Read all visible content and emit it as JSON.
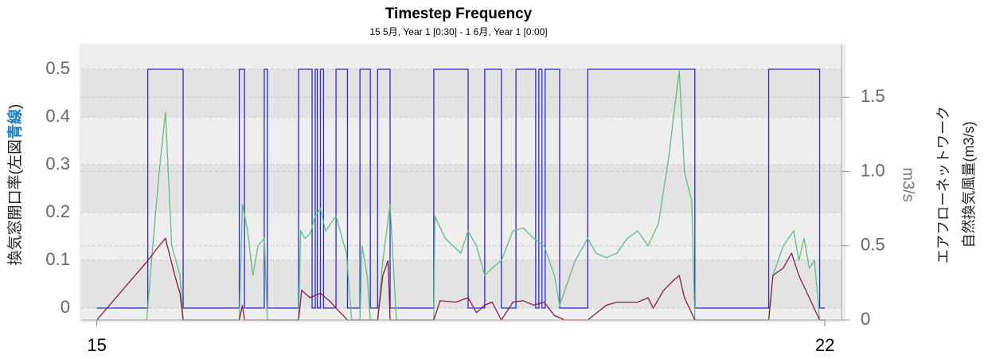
{
  "chart_data": {
    "type": "line",
    "title": "Timestep Frequency",
    "subtitle": "15 5月, Year 1 [0:30] - 1 6月, Year 1 [0:00]",
    "ylabel": [
      "換気窓開口率(左図",
      "青線",
      ")"
    ],
    "y2label": "m3/s",
    "y2title": [
      "エアフローネットワーク",
      "自然換気風量(m3/s)"
    ],
    "xlim": [
      14.85,
      22.16
    ],
    "xticks": [
      15,
      22
    ],
    "ylim": [
      -0.025,
      0.55
    ],
    "yticks": [
      0,
      0.1,
      0.2,
      0.3,
      0.4,
      0.5
    ],
    "y2lim": [
      0,
      1.85
    ],
    "y2ticks": [
      0,
      0.5,
      {
        "value": 1,
        "label": "1.0"
      },
      1.5
    ],
    "grid": true,
    "series": [
      {
        "color": "#2a2acc",
        "axis": "y",
        "x": [
          15,
          15.49,
          15.49,
          15.83,
          15.83,
          16.37,
          16.37,
          16.42,
          16.42,
          16.61,
          16.61,
          16.64,
          16.64,
          16.94,
          16.94,
          17.07,
          17.07,
          17.1,
          17.1,
          17.12,
          17.12,
          17.15,
          17.15,
          17.18,
          17.18,
          17.3,
          17.3,
          17.41,
          17.41,
          17.53,
          17.53,
          17.63,
          17.63,
          17.7,
          17.7,
          17.82,
          17.82,
          18.24,
          18.24,
          18.57,
          18.57,
          18.73,
          18.73,
          18.89,
          18.89,
          19.03,
          19.03,
          19.22,
          19.22,
          19.25,
          19.25,
          19.28,
          19.28,
          19.31,
          19.31,
          19.45,
          19.45,
          19.72,
          19.72,
          20.75,
          20.75,
          21.46,
          21.46,
          21.95,
          21.95,
          22
        ],
        "values": [
          0,
          0,
          0.5,
          0.5,
          0,
          0,
          0.5,
          0.5,
          0,
          0,
          0.5,
          0.5,
          0,
          0,
          0.5,
          0.5,
          0,
          0,
          0.5,
          0.5,
          0,
          0,
          0.5,
          0.5,
          0,
          0,
          0.5,
          0.5,
          0,
          0,
          0.5,
          0.5,
          0,
          0,
          0.5,
          0.5,
          0,
          0,
          0.5,
          0.5,
          0,
          0,
          0.5,
          0.5,
          0,
          0,
          0.5,
          0.5,
          0,
          0,
          0.5,
          0.5,
          0,
          0,
          0.5,
          0.5,
          0,
          0,
          0.5,
          0.5,
          0,
          0,
          0.5,
          0.5,
          0,
          0
        ]
      },
      {
        "color": "#5cbf7e",
        "axis": "y2",
        "x": [
          15.0,
          15.48,
          15.55,
          15.6,
          15.66,
          15.72,
          15.8,
          15.83,
          16.37,
          16.4,
          16.45,
          16.5,
          16.55,
          16.61,
          16.64,
          16.94,
          16.96,
          17.0,
          17.05,
          17.1,
          17.15,
          17.2,
          17.3,
          17.4,
          17.45,
          17.53,
          17.55,
          17.6,
          17.63,
          17.7,
          17.75,
          17.82,
          17.88,
          18.24,
          18.25,
          18.35,
          18.5,
          18.57,
          18.65,
          18.73,
          18.8,
          18.89,
          19.0,
          19.1,
          19.2,
          19.3,
          19.4,
          19.45,
          19.6,
          19.72,
          19.8,
          19.9,
          20.0,
          20.1,
          20.2,
          20.3,
          20.4,
          20.5,
          20.55,
          20.6,
          20.65,
          20.72,
          20.75,
          21.46,
          21.5,
          21.6,
          21.7,
          21.75,
          21.8,
          21.85,
          21.9,
          21.95,
          22.0
        ],
        "values": [
          0,
          0,
          0.6,
          1.0,
          1.4,
          0.5,
          0.3,
          0,
          0,
          0.78,
          0.6,
          0.3,
          0.5,
          0.55,
          0,
          0,
          0.6,
          0.55,
          0.58,
          0.7,
          0.75,
          0.6,
          0.7,
          0.45,
          0,
          0,
          0.5,
          0.3,
          0,
          0,
          0.4,
          0.78,
          0,
          0,
          0.7,
          0.55,
          0.45,
          0.6,
          0.5,
          0.3,
          0.35,
          0.4,
          0.6,
          0.62,
          0.55,
          0.5,
          0.3,
          0.1,
          0.4,
          0.55,
          0.45,
          0.42,
          0.45,
          0.55,
          0.6,
          0.5,
          0.65,
          1.1,
          1.4,
          1.68,
          1.0,
          0.8,
          0,
          0,
          0.3,
          0.5,
          0.6,
          0.4,
          0.55,
          0.35,
          0.4,
          0,
          0
        ]
      },
      {
        "color": "#8b1a4a",
        "axis": "y2",
        "x": [
          15.0,
          15.49,
          15.6,
          15.66,
          15.75,
          15.8,
          15.83,
          16.37,
          16.4,
          16.42,
          16.94,
          16.97,
          17.05,
          17.15,
          17.25,
          17.3,
          17.41,
          17.7,
          17.75,
          17.8,
          17.82,
          18.24,
          18.3,
          18.45,
          18.57,
          18.65,
          18.73,
          18.8,
          18.89,
          19.0,
          19.1,
          19.2,
          19.3,
          19.4,
          19.5,
          19.72,
          19.9,
          20.0,
          20.2,
          20.3,
          20.35,
          20.45,
          20.55,
          20.6,
          20.65,
          20.75,
          21.46,
          21.5,
          21.6,
          21.68,
          21.75,
          21.85,
          21.95,
          22.0
        ],
        "values": [
          0,
          0.4,
          0.5,
          0.55,
          0.3,
          0.18,
          0,
          0,
          0.1,
          0,
          0,
          0.2,
          0.15,
          0.18,
          0.12,
          0.08,
          0,
          0,
          0.3,
          0.4,
          0,
          0,
          0.13,
          0.12,
          0.15,
          0.05,
          0.1,
          0.12,
          0,
          0.12,
          0.13,
          0.1,
          0.12,
          0.03,
          0,
          0,
          0.1,
          0.12,
          0.12,
          0.15,
          0.08,
          0.2,
          0.27,
          0.3,
          0.15,
          0,
          0,
          0.3,
          0.35,
          0.45,
          0.3,
          0.15,
          0,
          0
        ]
      }
    ]
  }
}
